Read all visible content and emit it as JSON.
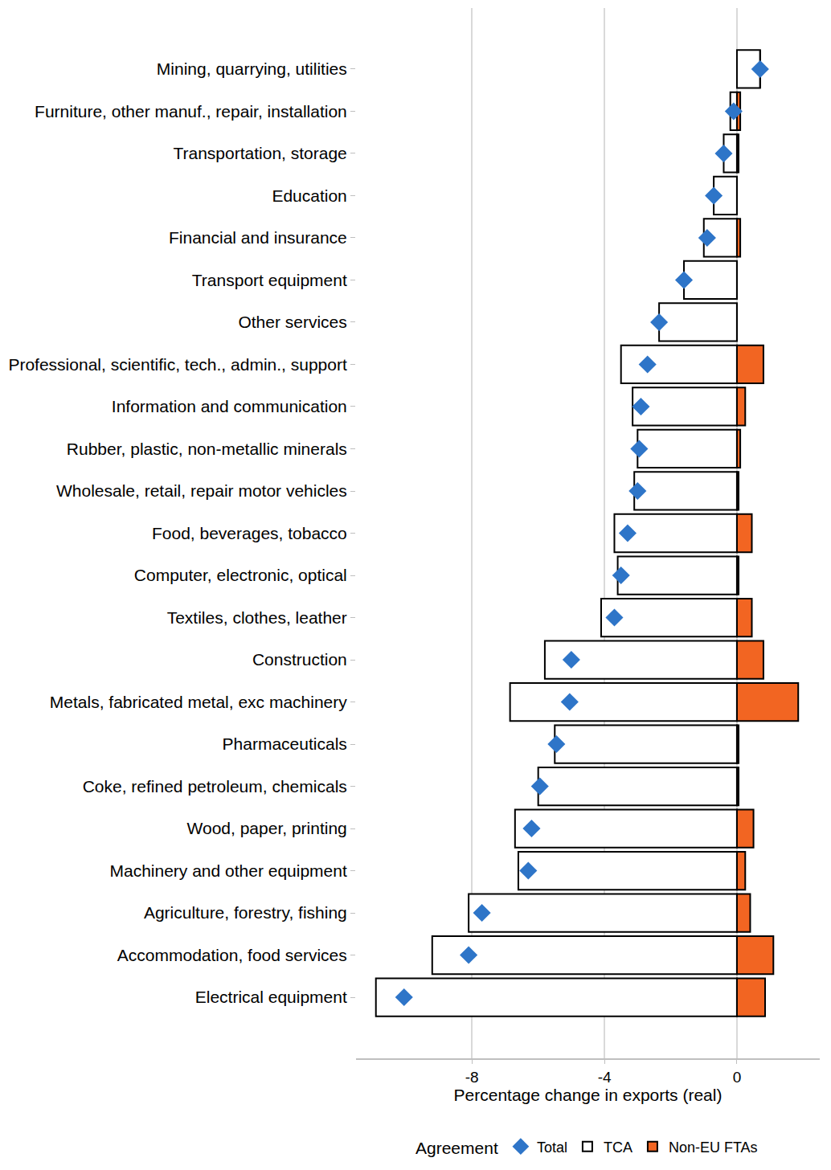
{
  "chart_data": {
    "type": "bar",
    "orientation": "horizontal",
    "stacked": true,
    "grid": true,
    "legend": "bottom",
    "legend_title": "Agreement",
    "x_label": "Percentage change in exports (real)",
    "xlim": [
      -11.5,
      2.5
    ],
    "xticks": [
      -8,
      -4,
      0
    ],
    "categories": [
      "Mining, quarrying, utilities",
      "Furniture, other manuf., repair, installation",
      "Transportation, storage",
      "Education",
      "Financial and insurance",
      "Transport equipment",
      "Other services",
      "Professional, scientific, tech., admin., support",
      "Information and communication",
      "Rubber, plastic, non-metallic minerals",
      "Wholesale, retail, repair motor vehicles",
      "Food, beverages, tobacco",
      "Computer, electronic, optical",
      "Textiles, clothes, leather",
      "Construction",
      "Metals, fabricated metal, exc machinery",
      "Pharmaceuticals",
      "Coke, refined petroleum, chemicals",
      "Wood, paper, printing",
      "Machinery and other equipment",
      "Agriculture, forestry, fishing",
      "Accommodation, food services",
      "Electrical equipment"
    ],
    "series": [
      {
        "name": "Total",
        "type": "scatter",
        "marker": "diamond",
        "color": "#2e75c8",
        "values": [
          0.7,
          -0.1,
          -0.4,
          -0.7,
          -0.9,
          -1.6,
          -2.35,
          -2.7,
          -2.9,
          -2.95,
          -3.0,
          -3.3,
          -3.5,
          -3.7,
          -5.0,
          -5.05,
          -5.45,
          -5.95,
          -6.2,
          -6.3,
          -7.7,
          -8.1,
          -10.05
        ]
      },
      {
        "name": "TCA",
        "type": "bar",
        "color": "#ffffff",
        "values": [
          0.7,
          -0.2,
          -0.4,
          -0.7,
          -1.0,
          -1.6,
          -2.35,
          -3.5,
          -3.15,
          -3.0,
          -3.1,
          -3.7,
          -3.6,
          -4.1,
          -5.8,
          -6.85,
          -5.5,
          -6.0,
          -6.7,
          -6.6,
          -8.1,
          -9.2,
          -10.9
        ]
      },
      {
        "name": "Non-EU FTAs",
        "type": "bar",
        "color": "#f26522",
        "values": [
          0.0,
          0.1,
          0.05,
          0.0,
          0.1,
          0.0,
          0.0,
          0.8,
          0.25,
          0.1,
          0.05,
          0.45,
          0.05,
          0.45,
          0.8,
          1.85,
          0.05,
          0.05,
          0.5,
          0.25,
          0.4,
          1.1,
          0.85
        ]
      }
    ]
  }
}
